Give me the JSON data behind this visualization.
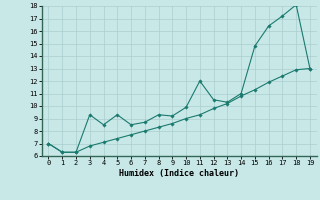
{
  "xlabel": "Humidex (Indice chaleur)",
  "x": [
    0,
    1,
    2,
    3,
    4,
    5,
    6,
    7,
    8,
    9,
    10,
    11,
    12,
    13,
    14,
    15,
    16,
    17,
    18,
    19
  ],
  "line1_y": [
    7.0,
    6.3,
    6.3,
    9.3,
    8.5,
    9.3,
    8.5,
    8.7,
    9.3,
    9.2,
    9.9,
    12.0,
    10.5,
    10.3,
    11.0,
    14.8,
    16.4,
    17.2,
    18.1,
    13.0
  ],
  "line2_y": [
    7.0,
    6.3,
    6.3,
    6.8,
    7.1,
    7.4,
    7.7,
    8.0,
    8.3,
    8.6,
    9.0,
    9.3,
    9.8,
    10.2,
    10.8,
    11.3,
    11.9,
    12.4,
    12.9,
    13.0
  ],
  "line_color": "#1a7a6e",
  "bg_color": "#c8e8e8",
  "grid_color": "#aacece",
  "ylim": [
    6,
    18
  ],
  "yticks": [
    6,
    7,
    8,
    9,
    10,
    11,
    12,
    13,
    14,
    15,
    16,
    17,
    18
  ],
  "xticks": [
    0,
    1,
    2,
    3,
    4,
    5,
    6,
    7,
    8,
    9,
    10,
    11,
    12,
    13,
    14,
    15,
    16,
    17,
    18,
    19
  ]
}
